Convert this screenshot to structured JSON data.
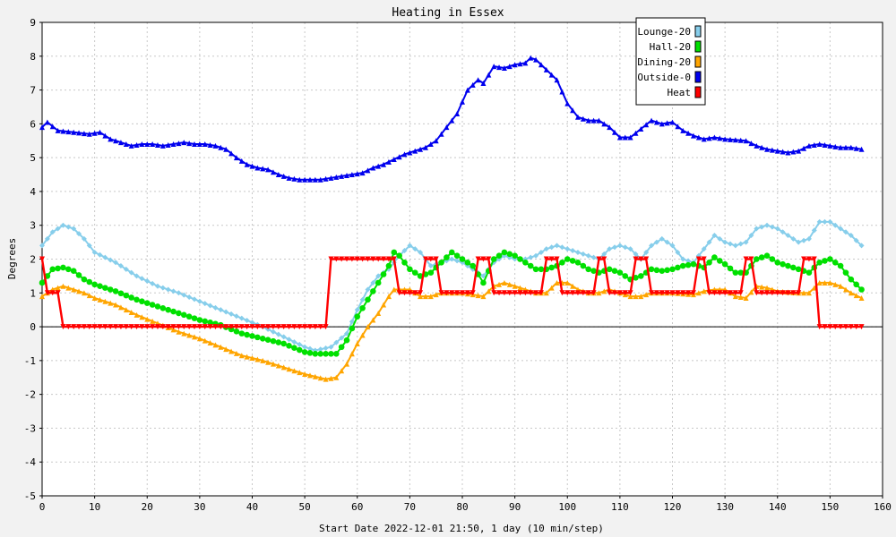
{
  "chart_data": {
    "type": "line",
    "title": "Heating in Essex",
    "xlabel": "Start Date 2022-12-01 21:50, 1 day (10 min/step)",
    "ylabel": "Degrees",
    "xlim": [
      0,
      160
    ],
    "ylim": [
      -5,
      9
    ],
    "x_ticks": [
      0,
      10,
      20,
      30,
      40,
      50,
      60,
      70,
      80,
      90,
      100,
      110,
      120,
      130,
      140,
      150,
      160
    ],
    "y_ticks": [
      -5,
      -4,
      -3,
      -2,
      -1,
      0,
      1,
      2,
      3,
      4,
      5,
      6,
      7,
      8,
      9
    ],
    "grid": true,
    "legend_position": "top-right",
    "series": [
      {
        "name": "Lounge-20",
        "color": "#87ceeb",
        "marker": "diamond",
        "points": [
          [
            0,
            2.4
          ],
          [
            2,
            2.8
          ],
          [
            4,
            3.0
          ],
          [
            6,
            2.9
          ],
          [
            8,
            2.6
          ],
          [
            10,
            2.2
          ],
          [
            14,
            1.9
          ],
          [
            18,
            1.5
          ],
          [
            22,
            1.2
          ],
          [
            26,
            1.0
          ],
          [
            30,
            0.75
          ],
          [
            34,
            0.5
          ],
          [
            38,
            0.25
          ],
          [
            42,
            0.0
          ],
          [
            46,
            -0.3
          ],
          [
            50,
            -0.6
          ],
          [
            52,
            -0.7
          ],
          [
            55,
            -0.6
          ],
          [
            58,
            -0.2
          ],
          [
            60,
            0.5
          ],
          [
            62,
            1.1
          ],
          [
            64,
            1.5
          ],
          [
            66,
            1.7
          ],
          [
            68,
            2.1
          ],
          [
            70,
            2.4
          ],
          [
            72,
            2.2
          ],
          [
            74,
            1.8
          ],
          [
            76,
            1.9
          ],
          [
            78,
            2.0
          ],
          [
            80,
            1.9
          ],
          [
            82,
            1.7
          ],
          [
            84,
            1.5
          ],
          [
            86,
            1.9
          ],
          [
            88,
            2.1
          ],
          [
            90,
            2.0
          ],
          [
            92,
            2.0
          ],
          [
            94,
            2.1
          ],
          [
            96,
            2.3
          ],
          [
            98,
            2.4
          ],
          [
            100,
            2.3
          ],
          [
            102,
            2.2
          ],
          [
            104,
            2.1
          ],
          [
            106,
            2.0
          ],
          [
            108,
            2.3
          ],
          [
            110,
            2.4
          ],
          [
            112,
            2.3
          ],
          [
            114,
            2.0
          ],
          [
            116,
            2.4
          ],
          [
            118,
            2.6
          ],
          [
            120,
            2.4
          ],
          [
            122,
            2.0
          ],
          [
            124,
            1.9
          ],
          [
            126,
            2.3
          ],
          [
            128,
            2.7
          ],
          [
            130,
            2.5
          ],
          [
            132,
            2.4
          ],
          [
            134,
            2.5
          ],
          [
            136,
            2.9
          ],
          [
            138,
            3.0
          ],
          [
            140,
            2.9
          ],
          [
            142,
            2.7
          ],
          [
            144,
            2.5
          ],
          [
            146,
            2.6
          ],
          [
            148,
            3.1
          ],
          [
            150,
            3.1
          ],
          [
            152,
            2.9
          ],
          [
            154,
            2.7
          ],
          [
            156,
            2.4
          ]
        ]
      },
      {
        "name": "Hall-20",
        "color": "#00e000",
        "marker": "circle",
        "points": [
          [
            0,
            1.3
          ],
          [
            2,
            1.7
          ],
          [
            4,
            1.75
          ],
          [
            6,
            1.65
          ],
          [
            8,
            1.4
          ],
          [
            10,
            1.25
          ],
          [
            14,
            1.05
          ],
          [
            18,
            0.8
          ],
          [
            22,
            0.6
          ],
          [
            26,
            0.4
          ],
          [
            30,
            0.2
          ],
          [
            34,
            0.05
          ],
          [
            38,
            -0.2
          ],
          [
            42,
            -0.35
          ],
          [
            46,
            -0.5
          ],
          [
            50,
            -0.75
          ],
          [
            52,
            -0.8
          ],
          [
            56,
            -0.8
          ],
          [
            58,
            -0.4
          ],
          [
            60,
            0.3
          ],
          [
            62,
            0.8
          ],
          [
            64,
            1.3
          ],
          [
            66,
            1.8
          ],
          [
            67,
            2.2
          ],
          [
            68,
            2.1
          ],
          [
            70,
            1.7
          ],
          [
            72,
            1.5
          ],
          [
            74,
            1.6
          ],
          [
            76,
            1.9
          ],
          [
            78,
            2.2
          ],
          [
            80,
            2.0
          ],
          [
            82,
            1.8
          ],
          [
            84,
            1.3
          ],
          [
            86,
            2.0
          ],
          [
            88,
            2.2
          ],
          [
            90,
            2.1
          ],
          [
            92,
            1.9
          ],
          [
            94,
            1.7
          ],
          [
            96,
            1.7
          ],
          [
            98,
            1.8
          ],
          [
            100,
            2.0
          ],
          [
            102,
            1.9
          ],
          [
            104,
            1.7
          ],
          [
            106,
            1.6
          ],
          [
            108,
            1.7
          ],
          [
            110,
            1.6
          ],
          [
            112,
            1.4
          ],
          [
            114,
            1.5
          ],
          [
            116,
            1.7
          ],
          [
            118,
            1.65
          ],
          [
            120,
            1.7
          ],
          [
            122,
            1.8
          ],
          [
            124,
            1.85
          ],
          [
            126,
            1.75
          ],
          [
            128,
            2.05
          ],
          [
            130,
            1.85
          ],
          [
            132,
            1.6
          ],
          [
            134,
            1.6
          ],
          [
            136,
            2.0
          ],
          [
            138,
            2.1
          ],
          [
            140,
            1.9
          ],
          [
            142,
            1.8
          ],
          [
            144,
            1.7
          ],
          [
            146,
            1.6
          ],
          [
            148,
            1.9
          ],
          [
            150,
            2.0
          ],
          [
            152,
            1.8
          ],
          [
            154,
            1.4
          ],
          [
            156,
            1.1
          ]
        ]
      },
      {
        "name": "Dining-20",
        "color": "#ffa500",
        "marker": "triangle",
        "points": [
          [
            0,
            0.9
          ],
          [
            2,
            1.1
          ],
          [
            4,
            1.2
          ],
          [
            6,
            1.1
          ],
          [
            8,
            1.0
          ],
          [
            10,
            0.85
          ],
          [
            14,
            0.65
          ],
          [
            18,
            0.35
          ],
          [
            22,
            0.1
          ],
          [
            26,
            -0.15
          ],
          [
            30,
            -0.35
          ],
          [
            34,
            -0.6
          ],
          [
            38,
            -0.85
          ],
          [
            42,
            -1.0
          ],
          [
            46,
            -1.2
          ],
          [
            50,
            -1.4
          ],
          [
            54,
            -1.55
          ],
          [
            56,
            -1.5
          ],
          [
            58,
            -1.1
          ],
          [
            60,
            -0.5
          ],
          [
            62,
            0.0
          ],
          [
            64,
            0.4
          ],
          [
            66,
            0.9
          ],
          [
            67,
            1.1
          ],
          [
            70,
            1.1
          ],
          [
            72,
            0.9
          ],
          [
            74,
            0.9
          ],
          [
            76,
            1.0
          ],
          [
            80,
            1.0
          ],
          [
            82,
            0.95
          ],
          [
            84,
            0.9
          ],
          [
            86,
            1.2
          ],
          [
            88,
            1.3
          ],
          [
            90,
            1.2
          ],
          [
            92,
            1.1
          ],
          [
            94,
            1.0
          ],
          [
            96,
            1.0
          ],
          [
            98,
            1.3
          ],
          [
            100,
            1.3
          ],
          [
            102,
            1.1
          ],
          [
            104,
            1.0
          ],
          [
            106,
            1.0
          ],
          [
            108,
            1.1
          ],
          [
            110,
            1.0
          ],
          [
            112,
            0.9
          ],
          [
            114,
            0.9
          ],
          [
            116,
            1.0
          ],
          [
            120,
            1.0
          ],
          [
            124,
            0.95
          ],
          [
            126,
            1.05
          ],
          [
            128,
            1.1
          ],
          [
            130,
            1.1
          ],
          [
            132,
            0.9
          ],
          [
            134,
            0.85
          ],
          [
            136,
            1.2
          ],
          [
            138,
            1.15
          ],
          [
            140,
            1.05
          ],
          [
            144,
            1.0
          ],
          [
            146,
            1.0
          ],
          [
            148,
            1.3
          ],
          [
            150,
            1.3
          ],
          [
            152,
            1.2
          ],
          [
            154,
            1.0
          ],
          [
            156,
            0.85
          ]
        ]
      },
      {
        "name": "Outside-0",
        "color": "#0000ee",
        "marker": "triangle",
        "points": [
          [
            0,
            5.9
          ],
          [
            1,
            6.05
          ],
          [
            3,
            5.8
          ],
          [
            6,
            5.75
          ],
          [
            9,
            5.7
          ],
          [
            11,
            5.75
          ],
          [
            13,
            5.55
          ],
          [
            15,
            5.45
          ],
          [
            17,
            5.35
          ],
          [
            19,
            5.4
          ],
          [
            21,
            5.4
          ],
          [
            23,
            5.35
          ],
          [
            25,
            5.4
          ],
          [
            27,
            5.45
          ],
          [
            29,
            5.4
          ],
          [
            31,
            5.4
          ],
          [
            33,
            5.35
          ],
          [
            35,
            5.25
          ],
          [
            37,
            5.0
          ],
          [
            39,
            4.8
          ],
          [
            41,
            4.7
          ],
          [
            43,
            4.65
          ],
          [
            45,
            4.5
          ],
          [
            47,
            4.4
          ],
          [
            49,
            4.35
          ],
          [
            51,
            4.35
          ],
          [
            53,
            4.35
          ],
          [
            55,
            4.4
          ],
          [
            57,
            4.45
          ],
          [
            59,
            4.5
          ],
          [
            61,
            4.55
          ],
          [
            63,
            4.7
          ],
          [
            65,
            4.8
          ],
          [
            67,
            4.95
          ],
          [
            69,
            5.1
          ],
          [
            71,
            5.2
          ],
          [
            73,
            5.3
          ],
          [
            75,
            5.5
          ],
          [
            77,
            5.9
          ],
          [
            79,
            6.3
          ],
          [
            81,
            7.0
          ],
          [
            83,
            7.3
          ],
          [
            84,
            7.2
          ],
          [
            86,
            7.7
          ],
          [
            88,
            7.65
          ],
          [
            90,
            7.75
          ],
          [
            92,
            7.8
          ],
          [
            93,
            7.95
          ],
          [
            94,
            7.9
          ],
          [
            96,
            7.6
          ],
          [
            98,
            7.3
          ],
          [
            100,
            6.6
          ],
          [
            102,
            6.2
          ],
          [
            104,
            6.1
          ],
          [
            106,
            6.1
          ],
          [
            108,
            5.9
          ],
          [
            110,
            5.6
          ],
          [
            112,
            5.6
          ],
          [
            114,
            5.85
          ],
          [
            116,
            6.1
          ],
          [
            118,
            6.0
          ],
          [
            120,
            6.05
          ],
          [
            122,
            5.8
          ],
          [
            124,
            5.65
          ],
          [
            126,
            5.55
          ],
          [
            128,
            5.6
          ],
          [
            130,
            5.55
          ],
          [
            134,
            5.5
          ],
          [
            136,
            5.35
          ],
          [
            138,
            5.25
          ],
          [
            140,
            5.2
          ],
          [
            142,
            5.15
          ],
          [
            144,
            5.2
          ],
          [
            146,
            5.35
          ],
          [
            148,
            5.4
          ],
          [
            150,
            5.35
          ],
          [
            152,
            5.3
          ],
          [
            154,
            5.3
          ],
          [
            156,
            5.25
          ]
        ]
      },
      {
        "name": "Heat",
        "color": "#ff0000",
        "marker": "triangle-down",
        "points": [
          [
            0,
            2
          ],
          [
            1,
            1
          ],
          [
            3,
            1
          ],
          [
            4,
            0
          ],
          [
            54,
            0
          ],
          [
            55,
            2
          ],
          [
            67,
            2
          ],
          [
            68,
            1
          ],
          [
            72,
            1
          ],
          [
            73,
            2
          ],
          [
            75,
            2
          ],
          [
            76,
            1
          ],
          [
            82,
            1
          ],
          [
            83,
            2
          ],
          [
            85,
            2
          ],
          [
            86,
            1
          ],
          [
            95,
            1
          ],
          [
            96,
            2
          ],
          [
            98,
            2
          ],
          [
            99,
            1
          ],
          [
            105,
            1
          ],
          [
            106,
            2
          ],
          [
            107,
            2
          ],
          [
            108,
            1
          ],
          [
            112,
            1
          ],
          [
            113,
            2
          ],
          [
            115,
            2
          ],
          [
            116,
            1
          ],
          [
            124,
            1
          ],
          [
            125,
            2
          ],
          [
            126,
            2
          ],
          [
            127,
            1
          ],
          [
            133,
            1
          ],
          [
            134,
            2
          ],
          [
            135,
            2
          ],
          [
            136,
            1
          ],
          [
            144,
            1
          ],
          [
            145,
            2
          ],
          [
            147,
            2
          ],
          [
            148,
            0
          ],
          [
            156,
            0
          ]
        ]
      }
    ]
  }
}
